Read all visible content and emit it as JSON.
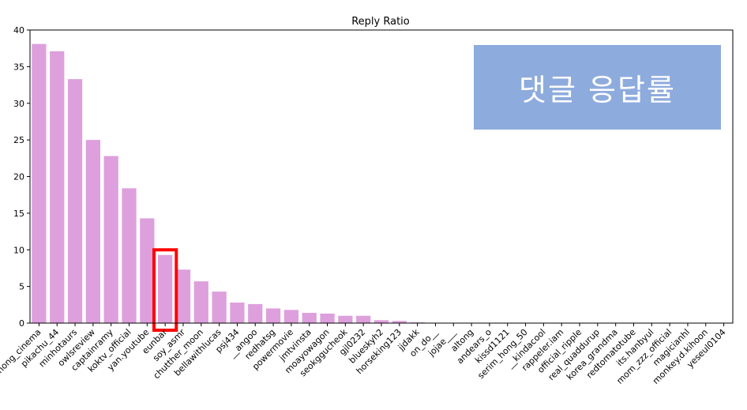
{
  "chart_data": {
    "type": "bar",
    "title": "Reply Ratio",
    "xlabel": "",
    "ylabel": "",
    "ylim": [
      0,
      40
    ],
    "yticks": [
      0,
      5,
      10,
      15,
      20,
      25,
      30,
      35,
      40
    ],
    "bar_color": "#dda0dd",
    "highlight_color": "#ff0000",
    "highlight_category": "eunbar",
    "categories": [
      "hong_cinema",
      "pikachu_44",
      "minhotaurs",
      "owlsreview",
      "captainramy",
      "koktv_official",
      "yan.youtube",
      "eunbar",
      "soy_asmr",
      "chutther_moon",
      "bellawithlucas",
      "psj434",
      "__angoo",
      "redhatsg",
      "powermovie",
      "jmtvinsta",
      "moayowagon",
      "seokggucheok",
      "gjl0232",
      "blueskyh2",
      "horseking123",
      "jjdakk",
      "on_do__",
      "jojae___",
      "altong",
      "andears_o",
      "kissd1121",
      "serim_hong_50",
      "__kindacool",
      "rappeler.iam",
      "official_ripple",
      "real_quaddurup",
      "korea_grandma",
      "redtomatotube",
      "its.hanbyul",
      "mom_zzz_official",
      "magicianhl",
      "monkey.d.kihoon",
      "yeseul0104"
    ],
    "values": [
      38.1,
      37.1,
      33.3,
      25.0,
      22.8,
      18.4,
      14.3,
      9.3,
      7.3,
      5.7,
      4.3,
      2.8,
      2.6,
      2.0,
      1.8,
      1.4,
      1.3,
      1.0,
      1.0,
      0.4,
      0.3,
      0.1,
      0.0,
      0.0,
      0.0,
      0.0,
      0.0,
      0.0,
      0.0,
      0.0,
      0.0,
      0.0,
      0.0,
      0.0,
      0.0,
      0.0,
      0.0,
      0.0,
      0.0
    ]
  },
  "overlay": {
    "label": "댓글 응답률",
    "color": "#8eabdd"
  }
}
